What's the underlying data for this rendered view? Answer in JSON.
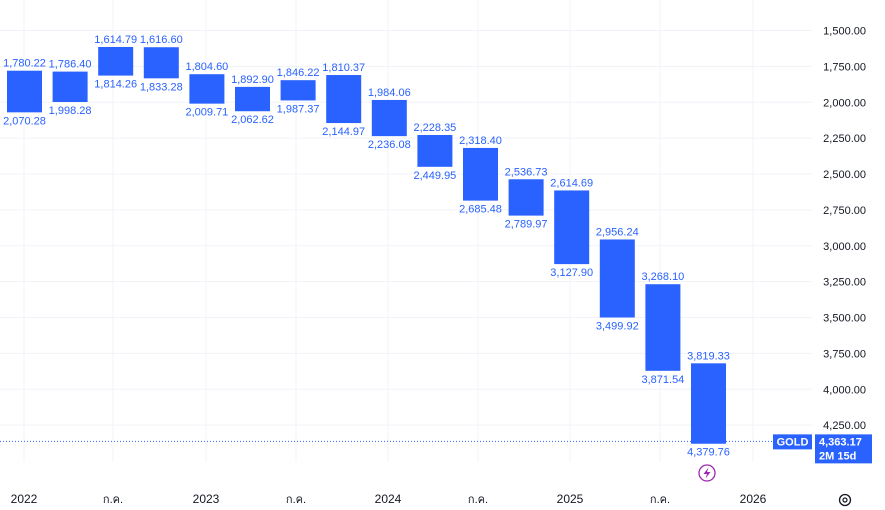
{
  "chart_data": {
    "type": "candlestick",
    "symbol": "GOLD",
    "colors": {
      "bar": "#2962ff",
      "grid": "#f0f3fa",
      "text": "#131722",
      "last_price_line": "#2962ff",
      "event_icon": "#9c27b0"
    },
    "y_axis": {
      "inverted": true,
      "ylim": [
        1400,
        4480
      ],
      "ticks": [
        "1,500.00",
        "1,750.00",
        "2,000.00",
        "2,250.00",
        "2,500.00",
        "2,750.00",
        "3,000.00",
        "3,250.00",
        "3,500.00",
        "3,750.00",
        "4,000.00",
        "4,250.00"
      ]
    },
    "x_axis": {
      "ticks": [
        "2022",
        "ก.ค.",
        "2023",
        "ก.ค.",
        "2024",
        "ก.ค.",
        "2025",
        "ก.ค.",
        "2026"
      ]
    },
    "bars": [
      {
        "top": "1,780.22",
        "bottom": "2,070.28"
      },
      {
        "top": "1,786.40",
        "bottom": "1,998.28"
      },
      {
        "top": "1,614.79",
        "bottom": "1,814.26"
      },
      {
        "top": "1,616.60",
        "bottom": "1,833.28"
      },
      {
        "top": "1,804.60",
        "bottom": "2,009.71"
      },
      {
        "top": "1,892.90",
        "bottom": "2,062.62"
      },
      {
        "top": "1,846.22",
        "bottom": "1,987.37"
      },
      {
        "top": "1,810.37",
        "bottom": "2,144.97"
      },
      {
        "top": "1,984.06",
        "bottom": "2,236.08"
      },
      {
        "top": "2,228.35",
        "bottom": "2,449.95"
      },
      {
        "top": "2,318.40",
        "bottom": "2,685.48"
      },
      {
        "top": "2,536.73",
        "bottom": "2,789.97"
      },
      {
        "top": "2,614.69",
        "bottom": "3,127.90"
      },
      {
        "top": "2,956.24",
        "bottom": "3,499.92"
      },
      {
        "top": "3,268.10",
        "bottom": "3,871.54"
      },
      {
        "top": "3,819.33",
        "bottom": "4,379.76"
      }
    ],
    "last_price": {
      "label": "GOLD",
      "value": "4,363.17",
      "countdown": "2M 15d"
    }
  }
}
